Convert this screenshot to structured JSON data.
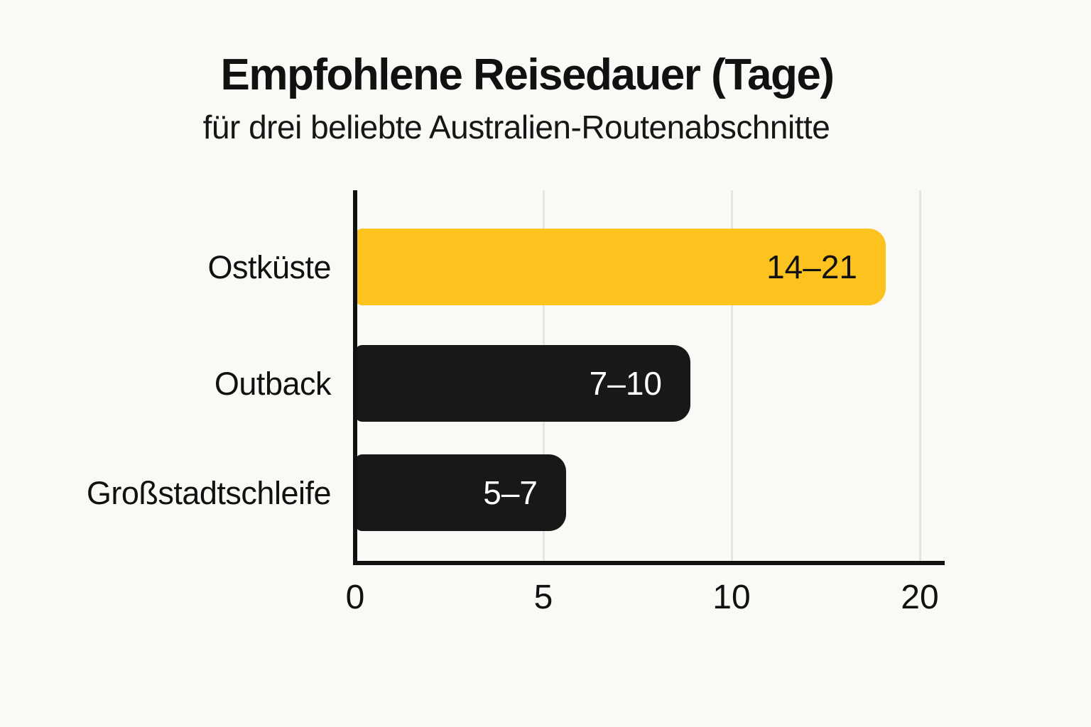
{
  "header": {
    "title": "Empfohlene Reisedauer (Tage)",
    "subtitle": "für drei beliebte Australien-Routenabschnitte"
  },
  "colors": {
    "background": "#FAF9F6",
    "accent_yellow": "#FCC21D",
    "bar_dark": "#181818",
    "axis": "#111111",
    "gridline": "#E5E4E1",
    "text": "#111111"
  },
  "chart_data": {
    "type": "bar",
    "orientation": "horizontal",
    "title": "Empfohlene Reisedauer (Tage)",
    "subtitle": "für drei beliebte Australien-Routenabschnitte",
    "categories": [
      "Ostküste",
      "Outback",
      "Großstadtschleife"
    ],
    "series": [
      {
        "name": "Empfohlene Reisedauer (Tage)",
        "ranges_days": [
          [
            14,
            21
          ],
          [
            7,
            10
          ],
          [
            5,
            7
          ]
        ],
        "value_labels": [
          "14–21",
          "7–10",
          "5–7"
        ]
      }
    ],
    "bar_plot_units": [
      14.1,
      8.9,
      5.6
    ],
    "bar_colors": [
      "#FCC21D",
      "#181818",
      "#181818"
    ],
    "bar_label_colors": [
      "#111111",
      "#FFFFFF",
      "#FFFFFF"
    ],
    "x_ticks": [
      "0",
      "5",
      "10",
      "20"
    ],
    "xlabel": "",
    "ylabel": "",
    "grid": "vertical-light",
    "legend": "none"
  }
}
